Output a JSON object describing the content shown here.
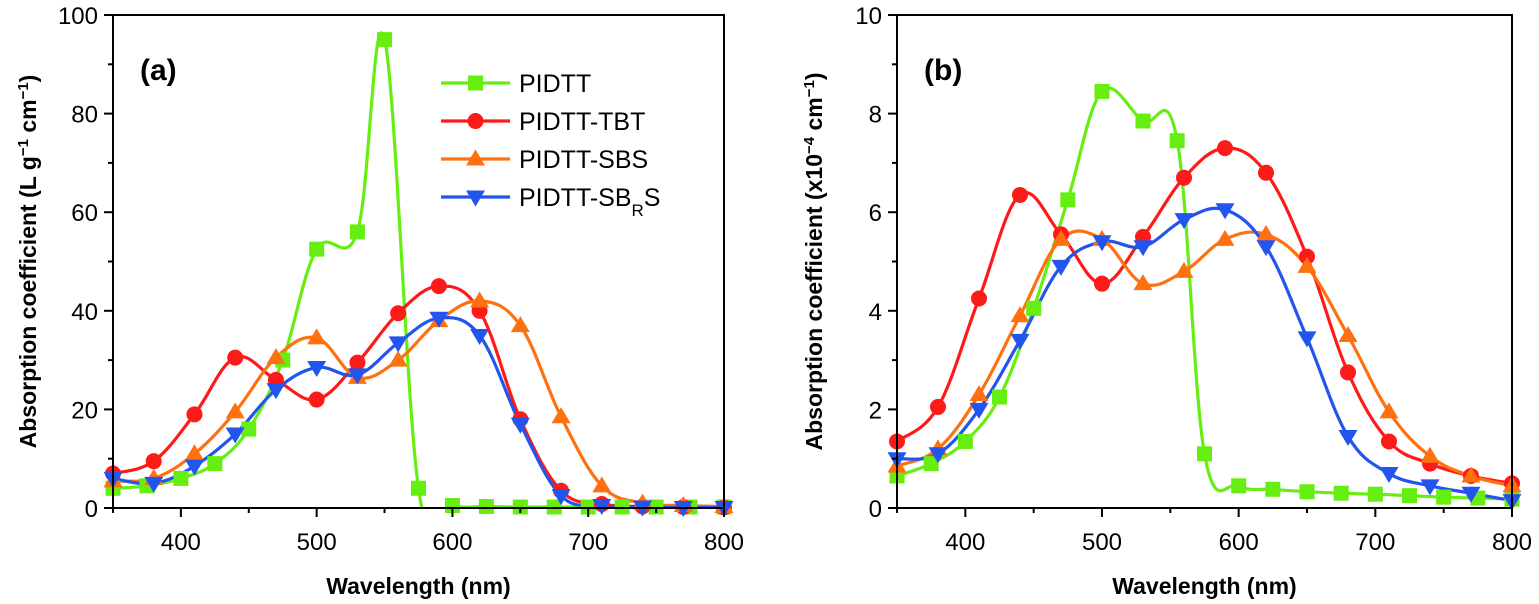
{
  "chart_data": [
    {
      "type": "line",
      "panel_label": "(a)",
      "xlabel": "Wavelength (nm)",
      "ylabel_main": "Absorption coefficient (L g",
      "ylabel_parts": [
        "Absorption coefficient (L g",
        "−1",
        " cm",
        "−1",
        ")"
      ],
      "xlim": [
        350,
        800
      ],
      "ylim": [
        0,
        100
      ],
      "xticks": [
        400,
        500,
        600,
        700,
        800
      ],
      "yticks": [
        0,
        20,
        40,
        60,
        80,
        100
      ],
      "legend_position": "top-right",
      "series": [
        {
          "name": "PIDTT",
          "color": "#66ee11",
          "marker": "square",
          "x": [
            350,
            375,
            400,
            425,
            450,
            475,
            500,
            530,
            550,
            575,
            600,
            625,
            650,
            675,
            700,
            725,
            750,
            775,
            800
          ],
          "y": [
            4,
            4.5,
            6,
            9,
            16,
            30,
            52.5,
            56,
            95,
            4,
            0.5,
            0.3,
            0.2,
            0.2,
            0.2,
            0.2,
            0.2,
            0.2,
            0.2
          ]
        },
        {
          "name": "PIDTT-TBT",
          "color": "#ff1a1a",
          "marker": "circle",
          "x": [
            350,
            380,
            410,
            440,
            470,
            500,
            530,
            560,
            590,
            620,
            650,
            680,
            710,
            740,
            770,
            800
          ],
          "y": [
            7,
            9.5,
            19,
            30.5,
            26,
            22,
            29.5,
            39.5,
            45,
            40,
            18,
            3.5,
            0.8,
            0.3,
            0.2,
            0.1
          ]
        },
        {
          "name": "PIDTT-SBS",
          "color": "#ff7011",
          "marker": "triangle-up",
          "x": [
            350,
            380,
            410,
            440,
            470,
            500,
            530,
            560,
            590,
            620,
            650,
            680,
            710,
            740,
            770,
            800
          ],
          "y": [
            5.5,
            6,
            11,
            19.5,
            30.5,
            34.5,
            26.5,
            30,
            38,
            42,
            37,
            18.5,
            4.5,
            1,
            0.5,
            0.3
          ]
        },
        {
          "name": "PIDTT-SB",
          "name_sub": "R",
          "name_suffix": "S",
          "color": "#2255ee",
          "marker": "triangle-down",
          "x": [
            350,
            380,
            410,
            440,
            470,
            500,
            530,
            560,
            590,
            620,
            650,
            680,
            710,
            740,
            770,
            800
          ],
          "y": [
            6,
            5,
            8.5,
            15,
            24,
            28.5,
            27,
            33.5,
            38.5,
            35,
            17,
            2.5,
            0.5,
            0.2,
            0.1,
            0.1
          ]
        }
      ]
    },
    {
      "type": "line",
      "panel_label": "(b)",
      "xlabel": "Wavelength (nm)",
      "ylabel_parts": [
        "Absorption coefficient (x10",
        "−4",
        " cm",
        "−1",
        ")"
      ],
      "xlim": [
        350,
        800
      ],
      "ylim": [
        0,
        10
      ],
      "xticks": [
        400,
        500,
        600,
        700,
        800
      ],
      "yticks": [
        0,
        2,
        4,
        6,
        8,
        10
      ],
      "series": [
        {
          "name": "PIDTT",
          "color": "#66ee11",
          "marker": "square",
          "x": [
            350,
            375,
            400,
            425,
            450,
            475,
            500,
            530,
            555,
            575,
            600,
            625,
            650,
            675,
            700,
            725,
            750,
            775,
            800
          ],
          "y": [
            0.65,
            0.9,
            1.35,
            2.25,
            4.05,
            6.25,
            8.45,
            7.85,
            7.45,
            1.1,
            0.45,
            0.38,
            0.33,
            0.3,
            0.28,
            0.25,
            0.22,
            0.2,
            0.18
          ]
        },
        {
          "name": "PIDTT-TBT",
          "color": "#ff1a1a",
          "marker": "circle",
          "x": [
            350,
            380,
            410,
            440,
            470,
            500,
            530,
            560,
            590,
            620,
            650,
            680,
            710,
            740,
            770,
            800
          ],
          "y": [
            1.35,
            2.05,
            4.25,
            6.35,
            5.55,
            4.55,
            5.5,
            6.7,
            7.3,
            6.8,
            5.1,
            2.75,
            1.35,
            0.9,
            0.65,
            0.5
          ]
        },
        {
          "name": "PIDTT-SBS",
          "color": "#ff7011",
          "marker": "triangle-up",
          "x": [
            350,
            380,
            410,
            440,
            470,
            500,
            530,
            560,
            590,
            620,
            650,
            680,
            710,
            740,
            770,
            800
          ],
          "y": [
            0.85,
            1.2,
            2.3,
            3.9,
            5.45,
            5.45,
            4.55,
            4.8,
            5.45,
            5.55,
            4.9,
            3.5,
            1.95,
            1.05,
            0.65,
            0.45
          ]
        },
        {
          "name": "PIDTT-SB",
          "name_sub": "R",
          "name_suffix": "S",
          "color": "#2255ee",
          "marker": "triangle-down",
          "x": [
            350,
            380,
            410,
            440,
            470,
            500,
            530,
            560,
            590,
            620,
            650,
            680,
            710,
            740,
            770,
            800
          ],
          "y": [
            1.0,
            1.1,
            2.0,
            3.4,
            4.9,
            5.4,
            5.3,
            5.85,
            6.05,
            5.3,
            3.45,
            1.45,
            0.7,
            0.45,
            0.3,
            0.15
          ]
        }
      ]
    }
  ]
}
